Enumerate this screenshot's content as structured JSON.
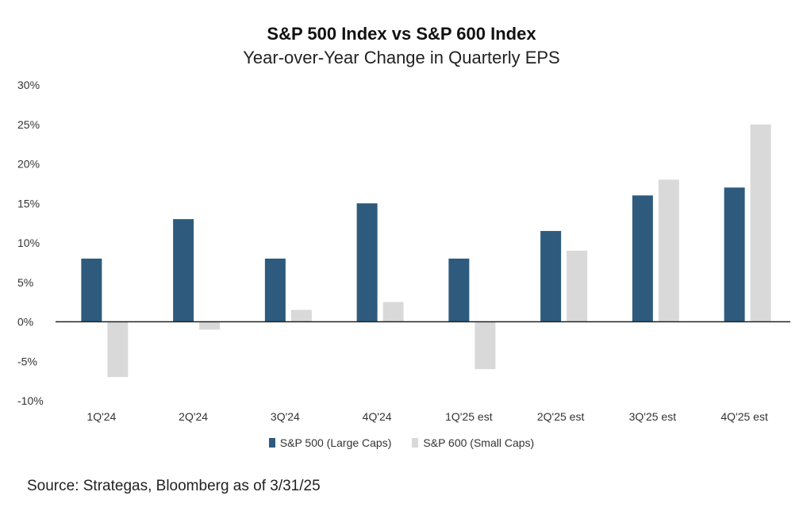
{
  "title": "S&P 500 Index vs S&P 600 Index",
  "subtitle": "Year-over-Year Change in Quarterly EPS",
  "source": "Source: Strategas, Bloomberg as of 3/31/25",
  "colors": {
    "sp500": "#2e5b7d",
    "sp600": "#d9d9d9",
    "axis": "#222222"
  },
  "chart_data": {
    "type": "bar",
    "title": "S&P 500 Index vs S&P 600 Index",
    "subtitle": "Year-over-Year Change in Quarterly EPS",
    "categories": [
      "1Q'24",
      "2Q'24",
      "3Q'24",
      "4Q'24",
      "1Q'25 est",
      "2Q'25 est",
      "3Q'25 est",
      "4Q'25 est"
    ],
    "series": [
      {
        "name": "S&P 500 (Large Caps)",
        "values": [
          8,
          13,
          8,
          15,
          8,
          11.5,
          16,
          17
        ]
      },
      {
        "name": "S&P 600 (Small Caps)",
        "values": [
          -7,
          -1,
          1.5,
          2.5,
          -6,
          9,
          18,
          25
        ]
      }
    ],
    "ylim": [
      -10,
      30
    ],
    "yticks": [
      "-10%",
      "-5%",
      "0%",
      "5%",
      "10%",
      "15%",
      "20%",
      "25%",
      "30%"
    ],
    "grid": false,
    "legend": "bottom-center"
  }
}
